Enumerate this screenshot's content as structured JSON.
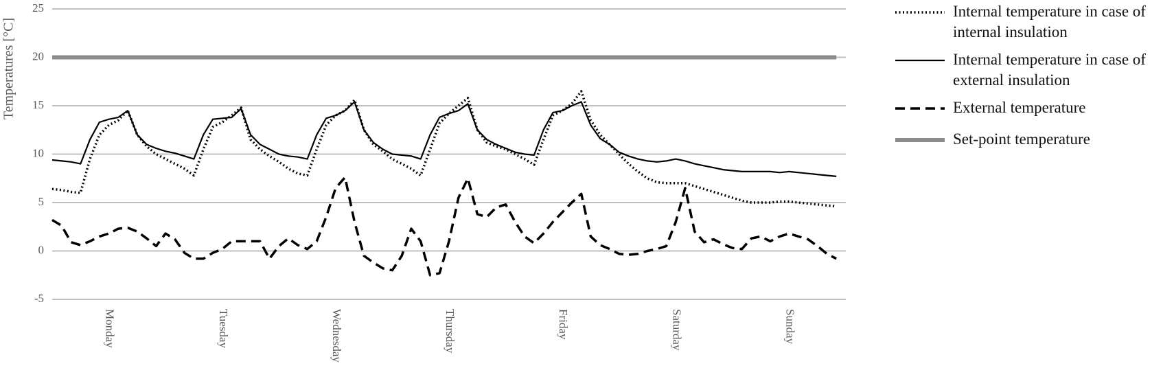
{
  "chart_data": {
    "type": "line",
    "y_label": "Temperatures [°C]",
    "x": [
      null,
      null,
      null,
      null,
      null,
      null,
      "Monday",
      null,
      null,
      null,
      null,
      null,
      null,
      null,
      null,
      null,
      null,
      null,
      "Tuesday",
      null,
      null,
      null,
      null,
      null,
      null,
      null,
      null,
      null,
      null,
      null,
      "Wednesday",
      null,
      null,
      null,
      null,
      null,
      null,
      null,
      null,
      null,
      null,
      null,
      "Thursday",
      null,
      null,
      null,
      null,
      null,
      null,
      null,
      null,
      null,
      null,
      null,
      "Friday",
      null,
      null,
      null,
      null,
      null,
      null,
      null,
      null,
      null,
      null,
      null,
      "Saturday",
      null,
      null,
      null,
      null,
      null,
      null,
      null,
      null,
      null,
      null,
      null,
      "Sunday",
      null,
      null,
      null,
      null,
      null
    ],
    "ylim": [
      -5,
      25
    ],
    "yticks": [
      -5,
      0,
      5,
      10,
      15,
      20,
      25
    ],
    "grid": true,
    "series": [
      {
        "name": "Internal temperature in case of internal insulation",
        "color": "#000000",
        "style": "dotted",
        "values": [
          6.4,
          6.3,
          6.1,
          6.0,
          9.5,
          12.0,
          13.0,
          13.5,
          14.5,
          12.0,
          10.8,
          10.0,
          9.5,
          9.0,
          8.5,
          7.8,
          10.5,
          12.8,
          13.3,
          14.0,
          14.8,
          11.5,
          10.5,
          9.8,
          9.2,
          8.5,
          8.0,
          7.8,
          10.5,
          13.0,
          14.0,
          14.5,
          15.6,
          12.5,
          11.0,
          10.3,
          9.5,
          9.0,
          8.5,
          7.8,
          10.5,
          13.2,
          14.2,
          15.0,
          15.8,
          12.5,
          11.2,
          10.8,
          10.5,
          10.0,
          9.5,
          8.9,
          11.5,
          14.0,
          14.5,
          15.2,
          16.5,
          13.5,
          12.0,
          11.0,
          10.0,
          9.0,
          8.2,
          7.5,
          7.1,
          7.0,
          7.0,
          7.0,
          6.7,
          6.4,
          6.1,
          5.8,
          5.5,
          5.2,
          5.0,
          5.0,
          5.0,
          5.1,
          5.1,
          5.0,
          4.9,
          4.8,
          4.7,
          4.6
        ]
      },
      {
        "name": "Internal temperature in case of external insulation",
        "color": "#000000",
        "style": "solid",
        "values": [
          9.4,
          9.3,
          9.2,
          9.0,
          11.5,
          13.3,
          13.6,
          13.8,
          14.5,
          12.0,
          11.0,
          10.6,
          10.3,
          10.1,
          9.8,
          9.5,
          12.0,
          13.6,
          13.7,
          13.8,
          14.7,
          12.0,
          11.0,
          10.5,
          10.0,
          9.8,
          9.7,
          9.5,
          12.0,
          13.7,
          14.0,
          14.5,
          15.4,
          12.5,
          11.2,
          10.5,
          10.0,
          9.9,
          9.8,
          9.5,
          12.0,
          13.8,
          14.2,
          14.5,
          15.2,
          12.5,
          11.5,
          11.0,
          10.6,
          10.2,
          10.0,
          9.9,
          12.5,
          14.3,
          14.5,
          15.0,
          15.4,
          13.0,
          11.6,
          11.0,
          10.2,
          9.8,
          9.5,
          9.3,
          9.2,
          9.3,
          9.5,
          9.3,
          9.0,
          8.8,
          8.6,
          8.4,
          8.3,
          8.2,
          8.2,
          8.2,
          8.2,
          8.1,
          8.2,
          8.1,
          8.0,
          7.9,
          7.8,
          7.7
        ]
      },
      {
        "name": "External temperature",
        "color": "#000000",
        "style": "dashed",
        "values": [
          3.2,
          2.6,
          0.9,
          0.6,
          1.0,
          1.5,
          1.8,
          2.3,
          2.4,
          2.0,
          1.3,
          0.5,
          1.8,
          1.2,
          -0.2,
          -0.8,
          -0.8,
          -0.2,
          0.2,
          1.0,
          1.0,
          1.0,
          1.0,
          -0.8,
          0.5,
          1.3,
          0.6,
          0.2,
          1.0,
          3.5,
          6.5,
          7.6,
          3.0,
          -0.5,
          -1.2,
          -1.8,
          -2.0,
          -0.5,
          2.3,
          1.0,
          -2.5,
          -2.3,
          1.0,
          5.5,
          7.5,
          3.8,
          3.5,
          4.5,
          4.8,
          3.0,
          1.5,
          0.8,
          1.8,
          3.0,
          4.0,
          5.0,
          5.9,
          1.5,
          0.6,
          0.2,
          -0.3,
          -0.4,
          -0.3,
          0.0,
          0.2,
          0.5,
          3.0,
          6.5,
          2.0,
          0.9,
          1.2,
          0.7,
          0.3,
          0.2,
          1.3,
          1.5,
          1.0,
          1.5,
          1.8,
          1.5,
          1.2,
          0.5,
          -0.3,
          -0.8
        ]
      },
      {
        "name": "Set-point temperature",
        "color": "#8c8c8c",
        "style": "thick",
        "values": [
          20,
          20,
          20,
          20,
          20,
          20,
          20,
          20,
          20,
          20,
          20,
          20,
          20,
          20,
          20,
          20,
          20,
          20,
          20,
          20,
          20,
          20,
          20,
          20,
          20,
          20,
          20,
          20,
          20,
          20,
          20,
          20,
          20,
          20,
          20,
          20,
          20,
          20,
          20,
          20,
          20,
          20,
          20,
          20,
          20,
          20,
          20,
          20,
          20,
          20,
          20,
          20,
          20,
          20,
          20,
          20,
          20,
          20,
          20,
          20,
          20,
          20,
          20,
          20,
          20,
          20,
          20,
          20,
          20,
          20,
          20,
          20,
          20,
          20,
          20,
          20,
          20,
          20,
          20,
          20,
          20,
          20,
          20,
          20
        ]
      }
    ]
  }
}
